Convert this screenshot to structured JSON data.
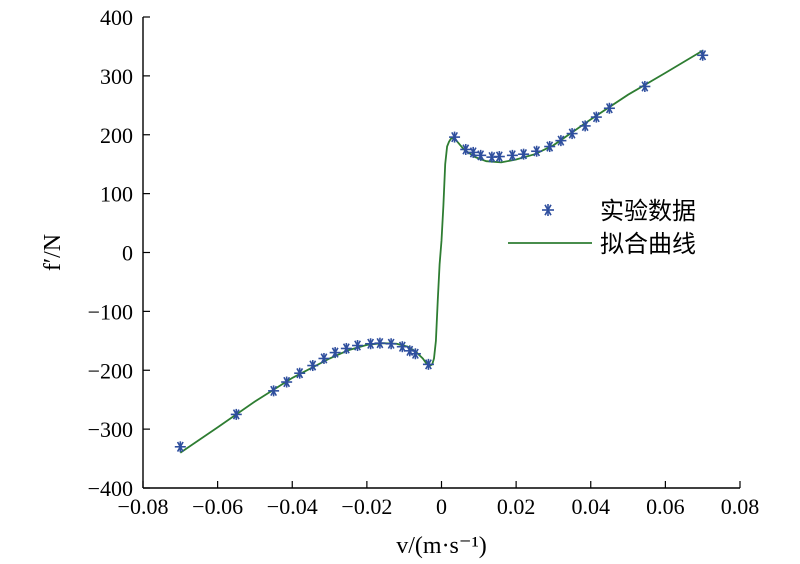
{
  "chart_data": {
    "type": "scatter",
    "title": "",
    "xlabel": "v/(m·s⁻¹)",
    "ylabel": "f′/N",
    "xlim": [
      -0.08,
      0.08
    ],
    "ylim": [
      -400,
      400
    ],
    "x_ticks": [
      -0.08,
      -0.06,
      -0.04,
      -0.02,
      0,
      0.02,
      0.04,
      0.06,
      0.08
    ],
    "x_tick_labels": [
      "−0.08",
      "−0.06",
      "−0.04",
      "−0.02",
      "0",
      "0.02",
      "0.04",
      "0.06",
      "0.08"
    ],
    "y_ticks": [
      -400,
      -300,
      -200,
      -100,
      0,
      100,
      200,
      300,
      400
    ],
    "y_tick_labels": [
      "−400",
      "−300",
      "−200",
      "−100",
      "0",
      "100",
      "200",
      "300",
      "400"
    ],
    "grid": false,
    "legend_position": "right",
    "series": [
      {
        "name": "实验数据",
        "kind": "scatter",
        "marker": "asterisk",
        "color": "#2f4f9e",
        "x": [
          -0.07,
          -0.055,
          -0.045,
          -0.0415,
          -0.038,
          -0.0345,
          -0.0315,
          -0.0285,
          -0.0255,
          -0.0225,
          -0.019,
          -0.0165,
          -0.0135,
          -0.0105,
          -0.0085,
          -0.007,
          -0.0035,
          0.0035,
          0.0065,
          0.0085,
          0.0105,
          0.0135,
          0.0155,
          0.019,
          0.022,
          0.0255,
          0.029,
          0.032,
          0.035,
          0.0385,
          0.0415,
          0.045,
          0.0545,
          0.07
        ],
        "y": [
          -330,
          -275,
          -235,
          -220,
          -205,
          -192,
          -180,
          -170,
          -163,
          -158,
          -155,
          -154,
          -155,
          -160,
          -167,
          -172,
          -190,
          196,
          175,
          170,
          165,
          162,
          163,
          165,
          167,
          172,
          180,
          190,
          202,
          215,
          230,
          245,
          282,
          335
        ]
      },
      {
        "name": "拟合曲线",
        "kind": "line",
        "color": "#2e7d32",
        "x": [
          -0.07,
          -0.06,
          -0.05,
          -0.04,
          -0.03,
          -0.025,
          -0.02,
          -0.016,
          -0.012,
          -0.009,
          -0.007,
          -0.005,
          -0.004,
          -0.003,
          -0.0025,
          -0.002,
          -0.0015,
          -0.001,
          -0.0005,
          0,
          0.0005,
          0.001,
          0.0015,
          0.002,
          0.0025,
          0.003,
          0.004,
          0.006,
          0.009,
          0.012,
          0.016,
          0.02,
          0.025,
          0.03,
          0.04,
          0.05,
          0.06,
          0.07
        ],
        "y": [
          -340,
          -297,
          -253,
          -213,
          -180,
          -166,
          -157,
          -154,
          -155,
          -160,
          -168,
          -180,
          -189,
          -192,
          -190,
          -180,
          -150,
          -80,
          -20,
          20,
          80,
          150,
          180,
          188,
          193,
          195,
          190,
          175,
          162,
          155,
          153,
          158,
          167,
          182,
          226,
          268,
          305,
          343
        ]
      }
    ]
  }
}
